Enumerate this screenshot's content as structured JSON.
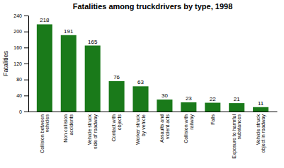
{
  "chart_data": {
    "type": "bar",
    "title": "Fatalities among truckdrivers by type, 1998",
    "ylabel": "Fatalities",
    "categories": [
      "Collision between\nvehicles",
      "Non collision\naccidents",
      "Vehicle struck\nside of roadway",
      "Contact with\nobjects",
      "Worker struck\nby vehicle",
      "Assaults and\nviolent acts",
      "Collision with\nrailway",
      "Falls",
      "Exposure to harmful\nsubstances",
      "Vehicle struck\nobject in roadway"
    ],
    "values": [
      218,
      191,
      165,
      76,
      63,
      30,
      23,
      22,
      21,
      11
    ],
    "color": "#1a7a1a",
    "ylim": [
      0,
      240
    ],
    "yticks": [
      0,
      40,
      80,
      120,
      160,
      200,
      240
    ],
    "grid": false,
    "data_labels": true
  }
}
